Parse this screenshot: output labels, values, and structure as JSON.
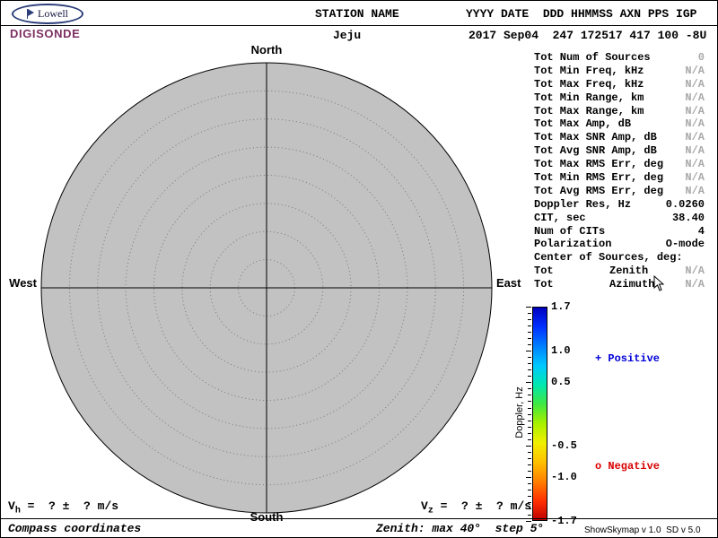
{
  "logo": {
    "name": "Lowell",
    "brand": "DIGISONDE"
  },
  "header": {
    "station_label": "STATION NAME",
    "station_value": "Jeju",
    "fields_label": "YYYY DATE  DDD HHMMSS AXN PPS IGP",
    "fields_value": "2017 Sep04  247 172517 417 100 -8U"
  },
  "skymap": {
    "north": "North",
    "south": "South",
    "west": "West",
    "east": "East",
    "zenith_steps": 8,
    "fill_color": "#c2c2c2"
  },
  "stats": {
    "rows": [
      {
        "label": "Tot Num of Sources",
        "value": "0",
        "muted": true
      },
      {
        "label": "Tot Min Freq, kHz",
        "value": "N/A",
        "muted": true
      },
      {
        "label": "Tot Max Freq, kHz",
        "value": "N/A",
        "muted": true
      },
      {
        "label": "Tot Min Range, km",
        "value": "N/A",
        "muted": true
      },
      {
        "label": "Tot Max Range, km",
        "value": "N/A",
        "muted": true
      },
      {
        "label": "Tot Max Amp, dB",
        "value": "N/A",
        "muted": true
      },
      {
        "label": "Tot Max SNR Amp, dB",
        "value": "N/A",
        "muted": true
      },
      {
        "label": "Tot Avg SNR Amp, dB",
        "value": "N/A",
        "muted": true
      },
      {
        "label": "Tot Max RMS Err, deg",
        "value": "N/A",
        "muted": true
      },
      {
        "label": "Tot Min RMS Err, deg",
        "value": "N/A",
        "muted": true
      },
      {
        "label": "Tot Avg RMS Err, deg",
        "value": "N/A",
        "muted": true
      },
      {
        "label": "Doppler Res, Hz",
        "value": "0.0260",
        "muted": false
      },
      {
        "label": "CIT, sec",
        "value": "38.40",
        "muted": false
      },
      {
        "label": "Num of CITs",
        "value": "4",
        "muted": false
      },
      {
        "label": "Polarization",
        "value": "O-mode",
        "muted": false
      },
      {
        "label": "Center of Sources, deg:",
        "value": "",
        "muted": false
      },
      {
        "label": "Tot",
        "sub": "Zenith",
        "value": "N/A",
        "muted": true
      },
      {
        "label": "Tot",
        "sub": "Azimuth",
        "value": "N/A",
        "muted": true
      }
    ]
  },
  "colorbar": {
    "axis_label": "Doppler, Hz",
    "max": 1.7,
    "min": -1.7,
    "tick_labels": [
      "1.7",
      "1.0",
      "0.5",
      "-0.5",
      "-1.0",
      "-1.7"
    ],
    "gradient": [
      "#0000bf",
      "#0030ff",
      "#0080ff",
      "#00c8ff",
      "#00e8b0",
      "#40e840",
      "#a8f000",
      "#f0f000",
      "#ffc000",
      "#ff8000",
      "#ff3000",
      "#c00000"
    ],
    "positive_label": "+ Positive",
    "negative_label": "o Negative",
    "positive_color": "#0000d8",
    "negative_color": "#d80000"
  },
  "footer": {
    "vh_base": "V",
    "vh_sub": "h",
    "vh_rest": " =  ? ±  ? m/s",
    "vz_base": "V",
    "vz_sub": "z",
    "vz_rest": " =  ? ±  ? m/s",
    "coords_note": "Compass coordinates",
    "zenith_note": "Zenith: max 40°  step 5°",
    "version": "ShowSkymap v 1.0  SD v 5.0"
  }
}
